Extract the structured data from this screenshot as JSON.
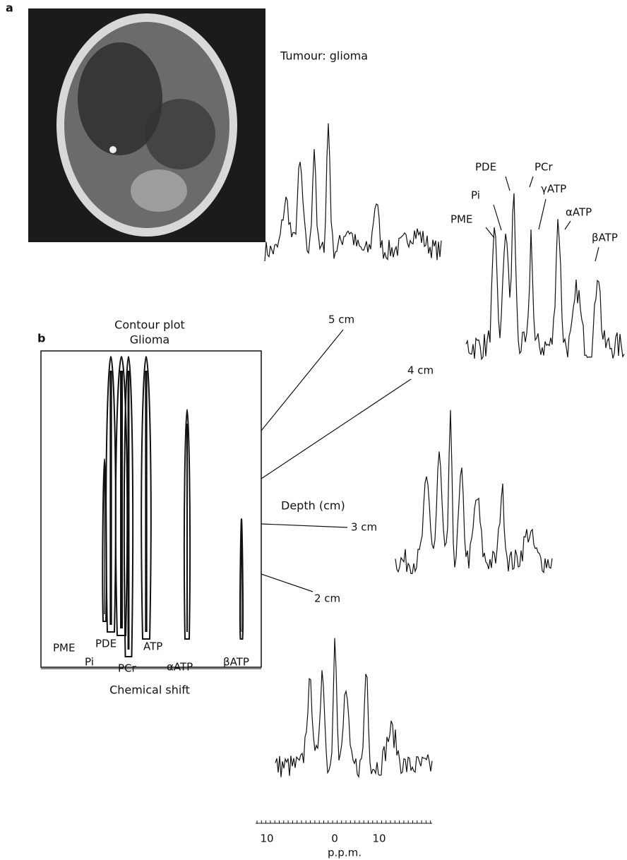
{
  "panel_a": {
    "label": "a",
    "spectrum_title": "Tumour: glioma",
    "peak_labels": {
      "pde": "PDE",
      "pcr": "PCr",
      "pi": "Pi",
      "gatp": "γATP",
      "pme": "PME",
      "aatp": "αATP",
      "batp": "βATP"
    }
  },
  "panel_b": {
    "label": "b",
    "title": "Contour plot",
    "subtitle": "Glioma",
    "axis_label": "Chemical shift",
    "peak_labels": {
      "pme": "PME",
      "pde": "PDE",
      "atp": "ATP",
      "pi": "Pi",
      "pcr": "PCr",
      "aatp": "αATP",
      "batp": "βATP"
    }
  },
  "depth": {
    "label": "Depth (cm)",
    "levels": [
      "5 cm",
      "4 cm",
      "3 cm",
      "2 cm"
    ]
  },
  "ppm_axis": {
    "tick_labels": [
      "10",
      "0",
      "10"
    ],
    "label": "p.p.m."
  }
}
